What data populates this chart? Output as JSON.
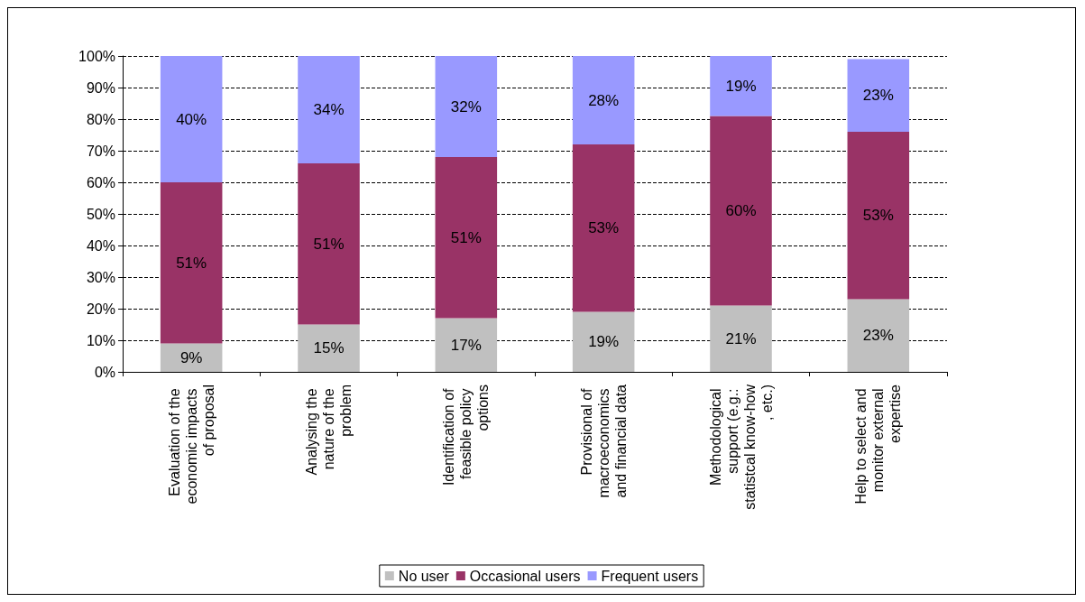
{
  "chart_data": {
    "type": "bar",
    "stacked": true,
    "categories": [
      "Evaluation of the economic impacts of proposal",
      "Analysing the nature of the problem",
      "Identification of feasible policy options",
      "Provisional of macroeconomics and financial data",
      "Methodological support (e.g.: statistcal know-how, etc.)",
      "Help to select and monitor external expertise"
    ],
    "series": [
      {
        "name": "No user",
        "color": "#c0c0c0",
        "values": [
          9,
          15,
          17,
          19,
          21,
          23
        ],
        "value_labels": [
          "9%",
          "15%",
          "17%",
          "19%",
          "21%",
          "23%"
        ]
      },
      {
        "name": "Occasional users",
        "color": "#993366",
        "values": [
          51,
          51,
          51,
          53,
          60,
          53
        ],
        "value_labels": [
          "51%",
          "51%",
          "51%",
          "53%",
          "60%",
          "53%"
        ]
      },
      {
        "name": "Frequent users",
        "color": "#9999ff",
        "values": [
          40,
          34,
          32,
          28,
          19,
          23
        ],
        "value_labels": [
          "40%",
          "34%",
          "32%",
          "28%",
          "19%",
          "23%"
        ]
      }
    ],
    "ylim": [
      0,
      100
    ],
    "yticks": [
      {
        "value": 0,
        "label": "0%"
      },
      {
        "value": 10,
        "label": "10%"
      },
      {
        "value": 20,
        "label": "20%"
      },
      {
        "value": 30,
        "label": "30%"
      },
      {
        "value": 40,
        "label": "40%"
      },
      {
        "value": 50,
        "label": "50%"
      },
      {
        "value": 60,
        "label": "60%"
      },
      {
        "value": 70,
        "label": "70%"
      },
      {
        "value": 80,
        "label": "80%"
      },
      {
        "value": 90,
        "label": "90%"
      },
      {
        "value": 100,
        "label": "100%"
      }
    ],
    "grid": "y",
    "legend": "bottom"
  }
}
